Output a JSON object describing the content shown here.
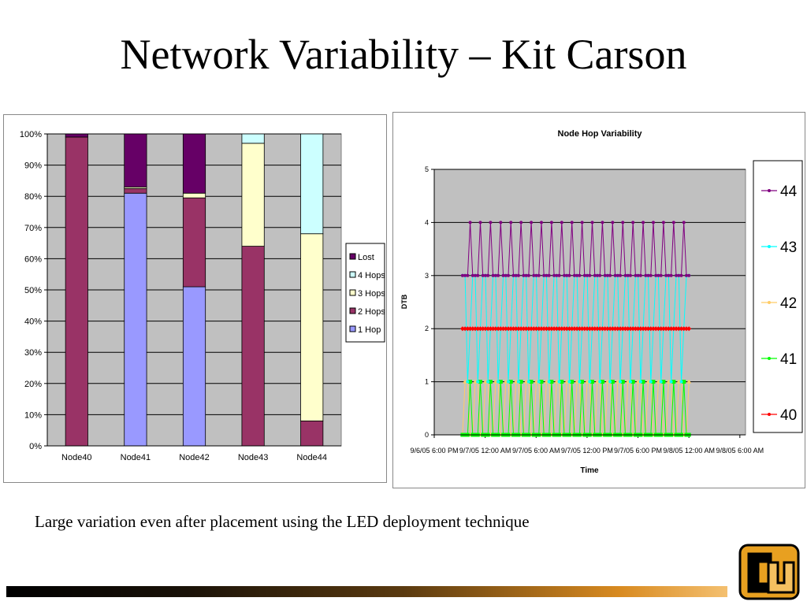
{
  "slide": {
    "title": "Network Variability – Kit Carson",
    "caption": "Large variation even after placement using the LED deployment technique",
    "logo_text": "CU"
  },
  "chart_data": [
    {
      "type": "bar",
      "stacked": "percent",
      "categories": [
        "Node40",
        "Node41",
        "Node42",
        "Node43",
        "Node44"
      ],
      "y_ticks": [
        "0%",
        "10%",
        "20%",
        "30%",
        "40%",
        "50%",
        "60%",
        "70%",
        "80%",
        "90%",
        "100%"
      ],
      "ylim": [
        0,
        100
      ],
      "grid": true,
      "legend_position": "right",
      "series": [
        {
          "name": "1 Hop",
          "color": "#9999ff",
          "values": [
            0,
            81,
            51,
            0,
            0
          ]
        },
        {
          "name": "2 Hops",
          "color": "#993366",
          "values": [
            99,
            1.5,
            28.5,
            64,
            8
          ]
        },
        {
          "name": "3 Hops",
          "color": "#ffffcc",
          "values": [
            0,
            0.5,
            1.5,
            33,
            60
          ]
        },
        {
          "name": "4 Hops",
          "color": "#ccffff",
          "values": [
            0,
            0,
            0,
            3,
            32
          ]
        },
        {
          "name": "Lost",
          "color": "#660066",
          "values": [
            1,
            17,
            19,
            0,
            0
          ]
        }
      ]
    },
    {
      "type": "line",
      "title": "Node Hop Variability",
      "xlabel": "Time",
      "ylabel": "DTB",
      "ylim": [
        0,
        5
      ],
      "y_ticks": [
        "0",
        "1",
        "2",
        "3",
        "4",
        "5"
      ],
      "x_ticks": [
        "9/6/05 6:00 PM",
        "9/7/05 12:00 AM",
        "9/7/05 6:00 AM",
        "9/7/05 12:00 PM",
        "9/7/05 6:00 PM",
        "9/8/05 12:00 AM",
        "9/8/05 6:00 AM"
      ],
      "x_start_label": "9/6/05 6:00 PM",
      "x_range_hours": [
        0,
        66
      ],
      "data_start_hour": 6,
      "data_end_hour": 54,
      "grid": true,
      "legend_position": "right",
      "series": [
        {
          "name": "44",
          "color": "#800080",
          "marker": "*",
          "pattern": [
            3,
            4,
            3,
            3,
            4,
            3,
            2,
            3,
            4,
            2,
            3,
            3,
            4,
            2,
            3,
            4,
            3,
            3,
            4,
            2,
            3,
            4,
            4,
            3,
            2,
            3,
            4,
            3
          ]
        },
        {
          "name": "43",
          "color": "#00ffff",
          "marker": "x",
          "pattern": [
            4,
            3,
            2,
            3,
            3,
            2,
            3,
            1,
            3,
            2,
            3,
            3,
            1,
            2,
            3,
            2,
            3,
            1,
            3,
            3,
            2,
            3,
            1,
            3,
            2,
            3,
            3,
            1
          ]
        },
        {
          "name": "42",
          "color": "#ffcc66",
          "marker": "triangle",
          "pattern": [
            3,
            1,
            2,
            0,
            1,
            3,
            0,
            2,
            1,
            0,
            2,
            3,
            0,
            1,
            2,
            0,
            3,
            1,
            0,
            2,
            1,
            0,
            3,
            2,
            0,
            1,
            2,
            0
          ]
        },
        {
          "name": "41",
          "color": "#00ff00",
          "marker": "square",
          "pattern": [
            1,
            0,
            1,
            3,
            0,
            1,
            0,
            1,
            3,
            0,
            1,
            0,
            1,
            0,
            3,
            1,
            0,
            1,
            0,
            1,
            3,
            0,
            1,
            0,
            1,
            0,
            1,
            0
          ]
        },
        {
          "name": "40",
          "color": "#ff0000",
          "marker": "diamond",
          "pattern": [
            2,
            2,
            2,
            2,
            2,
            2,
            2,
            2,
            2,
            2,
            2,
            2,
            2,
            2,
            2,
            2,
            2,
            2,
            2,
            2,
            2,
            2,
            2,
            2,
            2,
            2,
            2,
            2
          ]
        }
      ]
    }
  ]
}
